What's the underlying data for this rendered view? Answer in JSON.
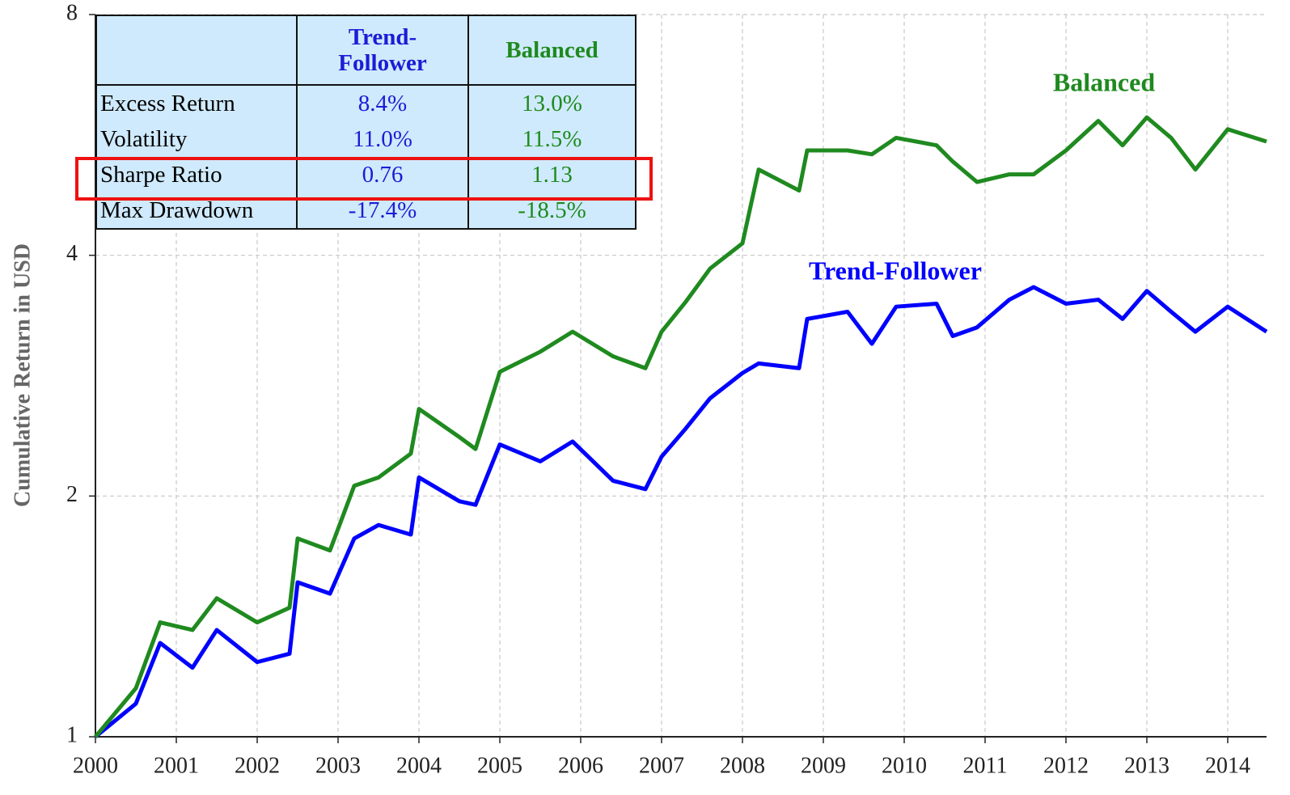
{
  "chart_data": {
    "type": "line",
    "y_label": "Cumulative Return in USD",
    "log_y": true,
    "grid": true,
    "x": [
      2000,
      2000.5,
      2000.8,
      2001.2,
      2001.5,
      2002,
      2002.4,
      2002.5,
      2002.9,
      2003.2,
      2003.5,
      2003.9,
      2004,
      2004.5,
      2004.7,
      2005,
      2005.5,
      2005.9,
      2006.4,
      2006.8,
      2007,
      2007.3,
      2007.6,
      2008,
      2008.2,
      2008.7,
      2008.8,
      2009.3,
      2009.6,
      2009.9,
      2010.4,
      2010.6,
      2010.9,
      2011.3,
      2011.6,
      2012,
      2012.4,
      2012.7,
      2013,
      2013.3,
      2013.6,
      2014,
      2014.48
    ],
    "xlim": [
      2000,
      2014.48
    ],
    "xticks": [
      2000,
      2001,
      2002,
      2003,
      2004,
      2005,
      2006,
      2007,
      2008,
      2009,
      2010,
      2011,
      2012,
      2013,
      2014
    ],
    "ylim": [
      1,
      8
    ],
    "yticks": [
      1,
      2,
      4,
      8
    ],
    "series": [
      {
        "name": "Trend-Follower",
        "color": "#0000ff",
        "values": [
          1.0,
          1.1,
          1.31,
          1.22,
          1.36,
          1.24,
          1.27,
          1.56,
          1.51,
          1.77,
          1.84,
          1.79,
          2.11,
          1.97,
          1.95,
          2.32,
          2.21,
          2.34,
          2.09,
          2.04,
          2.24,
          2.43,
          2.65,
          2.85,
          2.93,
          2.89,
          3.33,
          3.4,
          3.1,
          3.45,
          3.48,
          3.17,
          3.25,
          3.52,
          3.65,
          3.48,
          3.52,
          3.33,
          3.61,
          3.4,
          3.21,
          3.45,
          3.21
        ]
      },
      {
        "name": "Balanced",
        "color": "#1f8a1f",
        "values": [
          1.0,
          1.15,
          1.39,
          1.36,
          1.49,
          1.39,
          1.45,
          1.77,
          1.71,
          2.06,
          2.11,
          2.26,
          2.57,
          2.37,
          2.29,
          2.86,
          3.03,
          3.21,
          2.99,
          2.89,
          3.21,
          3.5,
          3.85,
          4.14,
          5.12,
          4.82,
          5.41,
          5.41,
          5.35,
          5.61,
          5.49,
          5.24,
          4.94,
          5.05,
          5.05,
          5.41,
          5.89,
          5.49,
          5.95,
          5.61,
          5.12,
          5.75,
          5.55
        ]
      }
    ]
  },
  "table": {
    "header": [
      "Trend-Follower",
      "Balanced"
    ],
    "rows": [
      [
        "Excess Return",
        "8.4%",
        "13.0%"
      ],
      [
        "Volatility",
        "11.0%",
        "11.5%"
      ],
      [
        "Sharpe Ratio",
        "0.76",
        "1.13"
      ],
      [
        "Max Drawdown",
        "-17.4%",
        "-18.5%"
      ]
    ]
  }
}
